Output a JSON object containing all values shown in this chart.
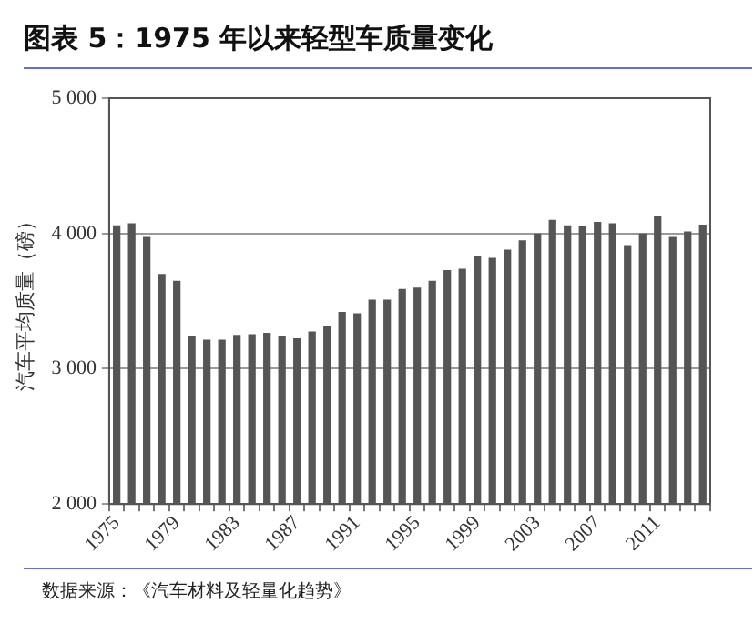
{
  "chart_data": {
    "type": "bar",
    "title": "图表 5：1975 年以来轻型车质量变化",
    "ylabel": "汽车平均质量（磅）",
    "annotations": [
      "数据来源：《汽车材料及轻量化趋势》"
    ],
    "categories": [
      "1975",
      null,
      null,
      null,
      "1979",
      null,
      null,
      null,
      "1983",
      null,
      null,
      null,
      "1987",
      null,
      null,
      null,
      "1991",
      null,
      null,
      null,
      "1995",
      null,
      null,
      null,
      "1999",
      null,
      null,
      null,
      "2003",
      null,
      null,
      null,
      "2007",
      null,
      null,
      null,
      "2011",
      null,
      null,
      null
    ],
    "values": [
      4060,
      4075,
      3975,
      3700,
      3650,
      3245,
      3215,
      3215,
      3250,
      3255,
      3265,
      3245,
      3225,
      3275,
      3320,
      3420,
      3410,
      3510,
      3510,
      3590,
      3600,
      3650,
      3730,
      3740,
      3830,
      3820,
      3880,
      3950,
      4000,
      4100,
      4060,
      4055,
      4085,
      4075,
      3915,
      4000,
      4130,
      3975,
      4015,
      4065
    ],
    "color": "#555555",
    "ylim": [
      2000,
      5000
    ],
    "yticks": [
      {
        "value": 2000,
        "label": "2 000"
      },
      {
        "value": 3000,
        "label": "3 000"
      },
      {
        "value": 4000,
        "label": "4 000"
      },
      {
        "value": 5000,
        "label": "5 000"
      }
    ],
    "grid": "y"
  }
}
